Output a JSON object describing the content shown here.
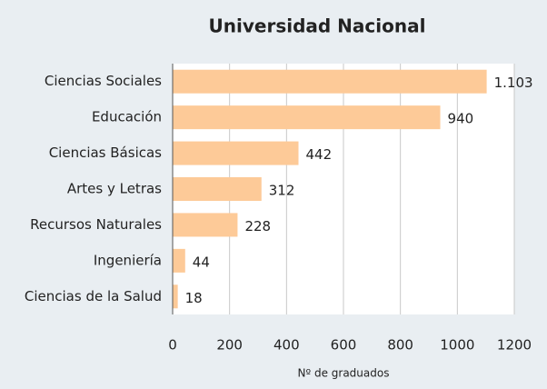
{
  "chart_data": {
    "type": "barh",
    "title": "Universidad Nacional",
    "categories": [
      "Ciencias Sociales",
      "Educación",
      "Ciencias Básicas",
      "Artes y Letras",
      "Recursos Naturales",
      "Ingeniería",
      "Ciencias de la Salud"
    ],
    "values": [
      1103,
      940,
      442,
      312,
      228,
      44,
      18
    ],
    "value_labels": [
      "1.103",
      "940",
      "442",
      "312",
      "228",
      "44",
      "18"
    ],
    "color": "#fdca98",
    "xlabel": "Nº de graduados",
    "xlim": [
      0,
      1200
    ],
    "xticks": [
      0,
      200,
      400,
      600,
      800,
      1000,
      1200
    ],
    "grid": true
  }
}
